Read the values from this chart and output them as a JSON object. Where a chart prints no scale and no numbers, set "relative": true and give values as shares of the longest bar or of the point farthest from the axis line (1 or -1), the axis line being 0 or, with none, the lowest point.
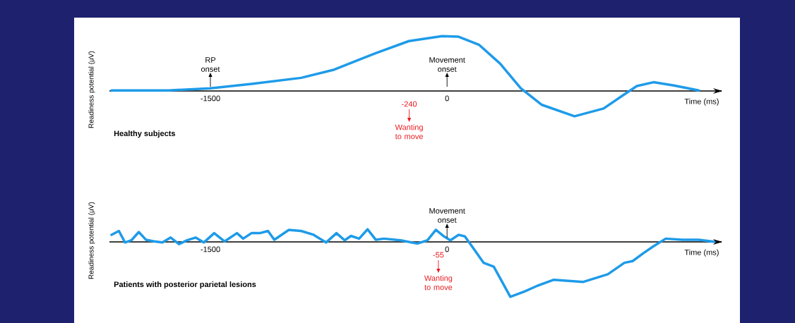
{
  "chart_data": [
    {
      "type": "line",
      "title": "Healthy subjects",
      "xlabel": "Time (ms)",
      "ylabel": "Readiness potential (μV)",
      "relative": true,
      "color": "#1e9be9",
      "x": [
        -2127,
        -1765,
        -1502,
        -1240,
        -925,
        -715,
        -452,
        -242,
        -32,
        73,
        204,
        336,
        467,
        599,
        808,
        992,
        1124,
        1203,
        1308,
        1439,
        1596
      ],
      "values": [
        0.01,
        0.01,
        0.05,
        0.13,
        0.24,
        0.39,
        0.69,
        0.91,
        1,
        0.99,
        0.84,
        0.5,
        0.05,
        -0.25,
        -0.46,
        -0.32,
        -0.06,
        0.09,
        0.16,
        0.1,
        0.01
      ],
      "xlim": [
        -2140,
        1740
      ],
      "xticks": [
        -1500,
        0
      ],
      "annotations": [
        "RP onset",
        "Movement onset",
        "Wanting to move"
      ],
      "ref_lines": [
        {
          "axis": "x",
          "value": -1500,
          "color": "#000000"
        },
        {
          "axis": "x",
          "value": 0,
          "color": "#000000"
        },
        {
          "axis": "x",
          "value": -240,
          "label": "-240",
          "color": "#e8191f"
        }
      ]
    },
    {
      "type": "line",
      "title": "Patients with posterior parietal lesions",
      "xlabel": "Time (ms)",
      "ylabel": "Readiness potential (μV)",
      "relative": true,
      "color": "#1e9be9",
      "x": [
        -2127,
        -2080,
        -2041,
        -2001,
        -1954,
        -1909,
        -1857,
        -1804,
        -1752,
        -1699,
        -1647,
        -1594,
        -1542,
        -1476,
        -1410,
        -1332,
        -1292,
        -1240,
        -1187,
        -1135,
        -1095,
        -1003,
        -925,
        -846,
        -767,
        -701,
        -649,
        -609,
        -557,
        -504,
        -452,
        -400,
        -294,
        -189,
        -124,
        -71,
        -19,
        21,
        73,
        113,
        165,
        231,
        296,
        336,
        401,
        493,
        572,
        677,
        861,
        1019,
        1124,
        1176,
        1242,
        1308,
        1386,
        1492,
        1596,
        1701
      ],
      "values": [
        0.13,
        0.2,
        -0.01,
        0.03,
        0.18,
        0.04,
        0.01,
        -0.01,
        0.08,
        -0.04,
        0.03,
        0.08,
        -0.01,
        0.16,
        0.01,
        0.16,
        0.06,
        0.16,
        0.16,
        0.2,
        0.04,
        0.22,
        0.2,
        0.13,
        -0.01,
        0.16,
        0.03,
        0.11,
        0.06,
        0.23,
        0.04,
        0.06,
        0.03,
        -0.03,
        0.03,
        0.22,
        0.1,
        0.03,
        0.13,
        0.1,
        -0.11,
        -0.38,
        -0.45,
        -0.66,
        -1,
        -0.9,
        -0.8,
        -0.69,
        -0.73,
        -0.59,
        -0.38,
        -0.35,
        -0.21,
        -0.08,
        0.06,
        0.04,
        0.04,
        0
      ],
      "xlim": [
        -2140,
        1740
      ],
      "xticks": [
        -1500,
        0
      ],
      "annotations": [
        "Movement onset",
        "Wanting to move"
      ],
      "ref_lines": [
        {
          "axis": "x",
          "value": 0,
          "color": "#000000"
        },
        {
          "axis": "x",
          "value": -55,
          "label": "-55",
          "color": "#e8191f"
        }
      ]
    }
  ]
}
